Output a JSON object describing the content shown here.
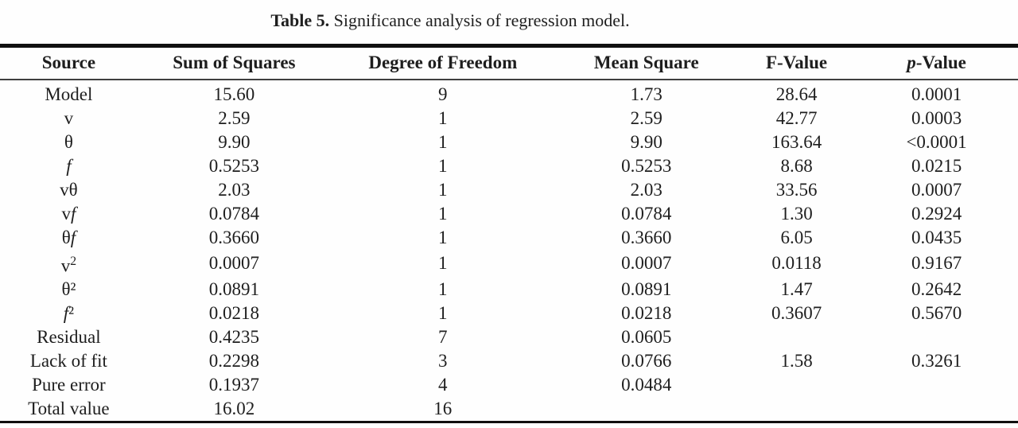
{
  "caption": {
    "label": "Table 5.",
    "text": "Significance analysis of regression model."
  },
  "table": {
    "headers": [
      "Source",
      "Sum of Squares",
      "Degree of Freedom",
      "Mean Square",
      "F-Value",
      "<i>p</i>-Value"
    ],
    "rows": [
      {
        "source": "Model",
        "values": [
          "15.60",
          "9",
          "1.73",
          "28.64",
          "0.0001"
        ]
      },
      {
        "source": "v",
        "values": [
          "2.59",
          "1",
          "2.59",
          "42.77",
          "0.0003"
        ]
      },
      {
        "source": "θ",
        "values": [
          "9.90",
          "1",
          "9.90",
          "163.64",
          "<0.0001"
        ]
      },
      {
        "source": "<i>f</i>",
        "values": [
          "0.5253",
          "1",
          "0.5253",
          "8.68",
          "0.0215"
        ]
      },
      {
        "source": "vθ",
        "values": [
          "2.03",
          "1",
          "2.03",
          "33.56",
          "0.0007"
        ]
      },
      {
        "source": "v<i>f</i>",
        "values": [
          "0.0784",
          "1",
          "0.0784",
          "1.30",
          "0.2924"
        ]
      },
      {
        "source": "θ<i>f</i>",
        "values": [
          "0.3660",
          "1",
          "0.3660",
          "6.05",
          "0.0435"
        ]
      },
      {
        "source": "v<sup>2</sup>",
        "values": [
          "0.0007",
          "1",
          "0.0007",
          "0.0118",
          "0.9167"
        ]
      },
      {
        "source": "θ²",
        "values": [
          "0.0891",
          "1",
          "0.0891",
          "1.47",
          "0.2642"
        ]
      },
      {
        "source": "<i>f</i>²",
        "values": [
          "0.0218",
          "1",
          "0.0218",
          "0.3607",
          "0.5670"
        ]
      },
      {
        "source": "Residual",
        "values": [
          "0.4235",
          "7",
          "0.0605",
          "",
          ""
        ]
      },
      {
        "source": "Lack of fit",
        "values": [
          "0.2298",
          "3",
          "0.0766",
          "1.58",
          "0.3261"
        ]
      },
      {
        "source": "Pure error",
        "values": [
          "0.1937",
          "4",
          "0.0484",
          "",
          ""
        ]
      },
      {
        "source": "Total value",
        "values": [
          "16.02",
          "16",
          "",
          "",
          ""
        ]
      }
    ]
  }
}
